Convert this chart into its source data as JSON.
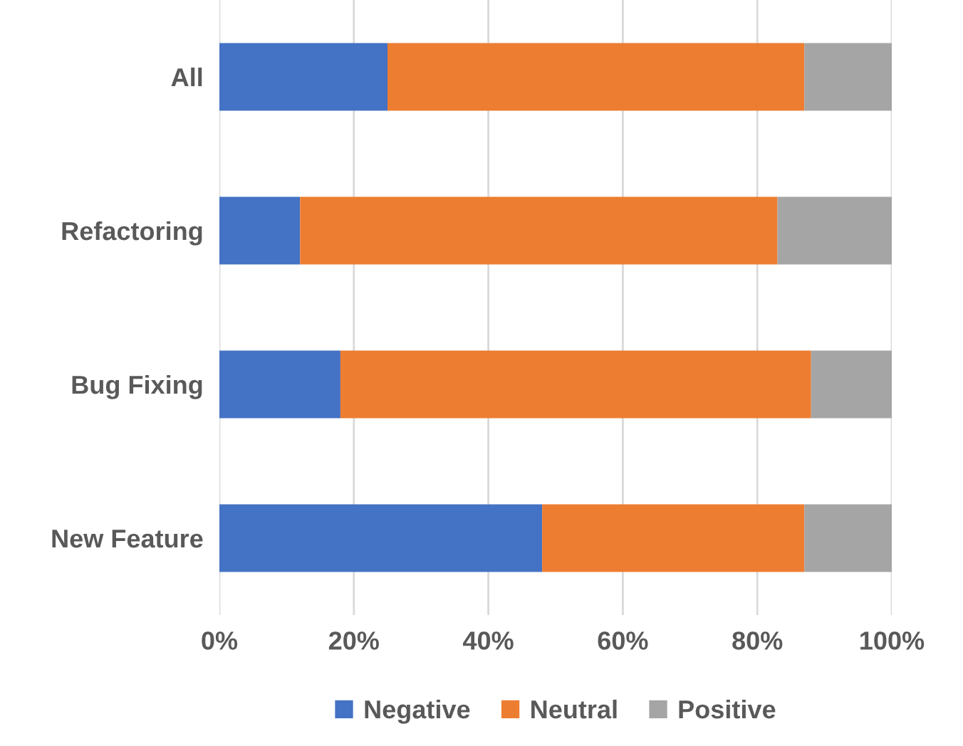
{
  "chart_data": {
    "type": "bar",
    "orientation": "horizontal",
    "stacked": true,
    "categories": [
      "All",
      "Refactoring",
      "Bug Fixing",
      "New Feature"
    ],
    "series": [
      {
        "name": "Negative",
        "color": "#4472c4",
        "values": [
          25,
          12,
          18,
          48
        ]
      },
      {
        "name": "Neutral",
        "color": "#ed7d31",
        "values": [
          62,
          71,
          70,
          39
        ]
      },
      {
        "name": "Positive",
        "color": "#a5a5a5",
        "values": [
          13,
          17,
          12,
          13
        ]
      }
    ],
    "xlim": [
      0,
      100
    ],
    "xticks": [
      {
        "value": 0,
        "label": "0%"
      },
      {
        "value": 20,
        "label": "20%"
      },
      {
        "value": 40,
        "label": "40%"
      },
      {
        "value": 60,
        "label": "60%"
      },
      {
        "value": 80,
        "label": "80%"
      },
      {
        "value": 100,
        "label": "100%"
      }
    ],
    "grid": "x",
    "legend": "bottom"
  }
}
